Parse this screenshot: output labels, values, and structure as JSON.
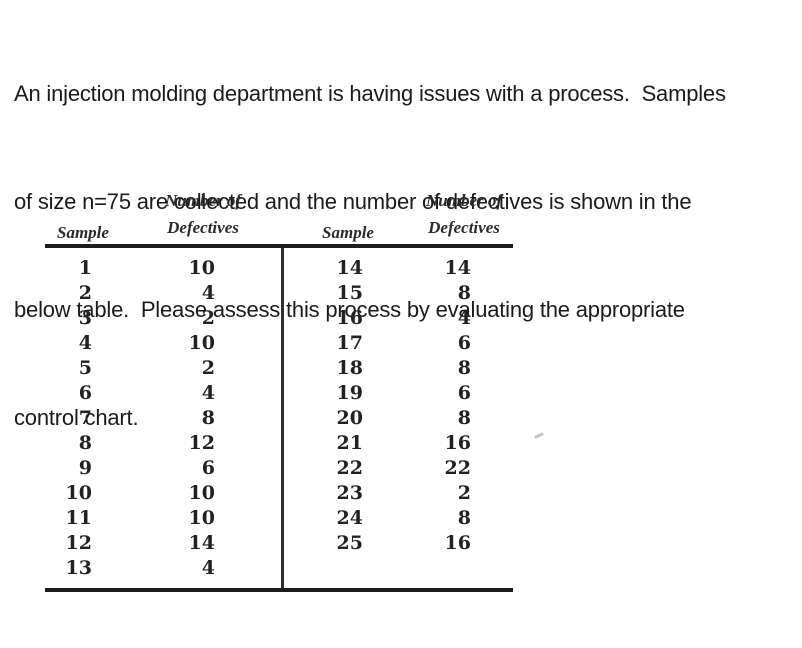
{
  "problem": {
    "lines": [
      "An injection molding department is having issues with a process.  Samples",
      "of size n=75 are collected and the number of defectives is shown in the",
      "below table.  Please assess this process by evaluating the appropriate",
      "control chart."
    ]
  },
  "table": {
    "column_headers": {
      "sample_left": "Sample",
      "defectives_left": "Number of\nDefectives",
      "sample_right": "Sample",
      "defectives_right": "Number of\nDefectives"
    },
    "left_rows": [
      {
        "sample": "1",
        "defectives": "10"
      },
      {
        "sample": "2",
        "defectives": "4"
      },
      {
        "sample": "3",
        "defectives": "2"
      },
      {
        "sample": "4",
        "defectives": "10"
      },
      {
        "sample": "5",
        "defectives": "2"
      },
      {
        "sample": "6",
        "defectives": "4"
      },
      {
        "sample": "7",
        "defectives": "8"
      },
      {
        "sample": "8",
        "defectives": "12"
      },
      {
        "sample": "9",
        "defectives": "6"
      },
      {
        "sample": "10",
        "defectives": "10"
      },
      {
        "sample": "11",
        "defectives": "10"
      },
      {
        "sample": "12",
        "defectives": "14"
      },
      {
        "sample": "13",
        "defectives": "4"
      }
    ],
    "right_rows": [
      {
        "sample": "14",
        "defectives": "14"
      },
      {
        "sample": "15",
        "defectives": "8"
      },
      {
        "sample": "16",
        "defectives": "4"
      },
      {
        "sample": "17",
        "defectives": "6"
      },
      {
        "sample": "18",
        "defectives": "8"
      },
      {
        "sample": "19",
        "defectives": "6"
      },
      {
        "sample": "20",
        "defectives": "8"
      },
      {
        "sample": "21",
        "defectives": "16"
      },
      {
        "sample": "22",
        "defectives": "22"
      },
      {
        "sample": "23",
        "defectives": "2"
      },
      {
        "sample": "24",
        "defectives": "8"
      },
      {
        "sample": "25",
        "defectives": "16"
      }
    ]
  },
  "colors": {
    "ink": "#1b1b1b",
    "table_ink": "#262626",
    "rule": "#1d1d1d",
    "background": "#ffffff"
  }
}
